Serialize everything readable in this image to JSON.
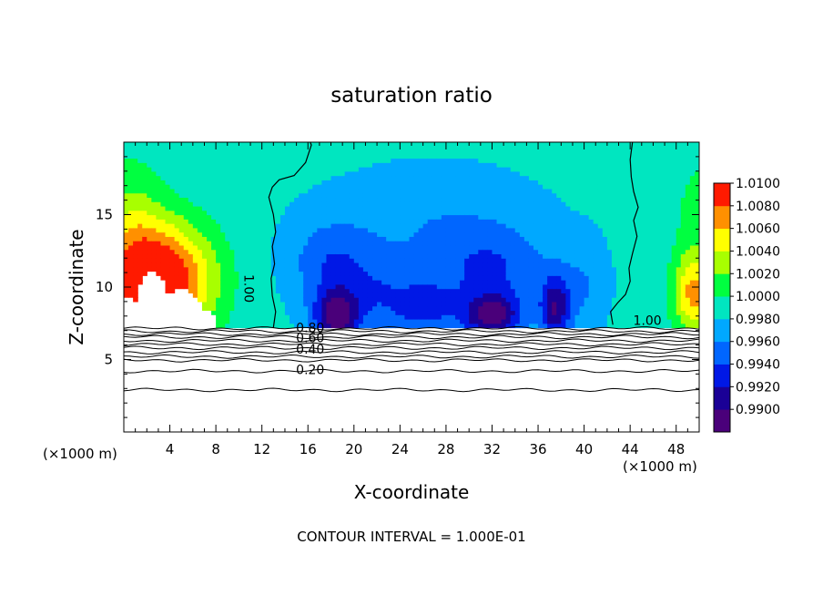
{
  "chart_data": {
    "type": "heatmap",
    "title": "saturation ratio",
    "xlabel": "X-coordinate",
    "ylabel": "Z-coordinate",
    "x_unit_left": "(×1000 m)",
    "x_unit_right": "(×1000 m)",
    "footer": "CONTOUR INTERVAL = 1.000E-01",
    "xlim": [
      0,
      50
    ],
    "ylim": [
      0,
      20
    ],
    "x_ticks": [
      {
        "value": 4,
        "label": "4"
      },
      {
        "value": 8,
        "label": "8"
      },
      {
        "value": 12,
        "label": "12"
      },
      {
        "value": 16,
        "label": "16"
      },
      {
        "value": 20,
        "label": "20"
      },
      {
        "value": 24,
        "label": "24"
      },
      {
        "value": 28,
        "label": "28"
      },
      {
        "value": 32,
        "label": "32"
      },
      {
        "value": 36,
        "label": "36"
      },
      {
        "value": 40,
        "label": "40"
      },
      {
        "value": 44,
        "label": "44"
      },
      {
        "value": 48,
        "label": "48"
      }
    ],
    "y_ticks": [
      {
        "value": 5,
        "label": "5"
      },
      {
        "value": 10,
        "label": "10"
      },
      {
        "value": 15,
        "label": "15"
      }
    ],
    "colorbar": {
      "min": 0.99,
      "max": 1.01,
      "labels": [
        "1.0100",
        "1.0080",
        "1.0060",
        "1.0040",
        "1.0020",
        "1.0000",
        "0.9980",
        "0.9960",
        "0.9940",
        "0.9920",
        "0.9900"
      ]
    },
    "contour_labels": [
      {
        "text": "1.00",
        "x": 10.5,
        "z": 9.9,
        "rotate": 90
      },
      {
        "text": "1.00",
        "x": 45.5,
        "z": 7.4,
        "rotate": 0
      },
      {
        "text": "0.80",
        "x": 16.2,
        "z": 6.9,
        "rotate": 0
      },
      {
        "text": "0.60",
        "x": 16.2,
        "z": 6.2,
        "rotate": 0
      },
      {
        "text": "0.40",
        "x": 16.2,
        "z": 5.4,
        "rotate": 0
      },
      {
        "text": "0.20",
        "x": 16.2,
        "z": 4.0,
        "rotate": 0
      }
    ],
    "field": {
      "surface_z": 7.2,
      "background_value": 0.9995,
      "features": [
        {
          "x": 3.5,
          "z": 10.5,
          "sx": 4.5,
          "sz": 4.0,
          "amp": 0.0105,
          "note": "supersaturated region left"
        },
        {
          "x": 0.5,
          "z": 12.5,
          "sx": 3.0,
          "sz": 6.0,
          "amp": 0.004
        },
        {
          "x": 49.5,
          "z": 9.5,
          "sx": 1.8,
          "sz": 2.8,
          "amp": 0.007,
          "note": "supersaturated region right"
        },
        {
          "x": 50.0,
          "z": 15.0,
          "sx": 2.5,
          "sz": 5.0,
          "amp": 0.002
        },
        {
          "x": 18.5,
          "z": 8.0,
          "sx": 2.0,
          "sz": 1.8,
          "amp": -0.0082
        },
        {
          "x": 18.0,
          "z": 11.5,
          "sx": 3.5,
          "sz": 3.0,
          "amp": -0.0035
        },
        {
          "x": 32.0,
          "z": 8.0,
          "sx": 2.5,
          "sz": 1.5,
          "amp": -0.0078
        },
        {
          "x": 32.0,
          "z": 11.0,
          "sx": 5.0,
          "sz": 3.0,
          "amp": -0.0035
        },
        {
          "x": 37.5,
          "z": 8.5,
          "sx": 1.3,
          "sz": 2.2,
          "amp": -0.007
        },
        {
          "x": 26.0,
          "z": 8.5,
          "sx": 3.0,
          "sz": 2.0,
          "amp": -0.004
        },
        {
          "x": 22.0,
          "z": 9.5,
          "sx": 3.0,
          "sz": 2.5,
          "amp": -0.0025
        },
        {
          "x": 27.0,
          "z": 14.0,
          "sx": 9.0,
          "sz": 4.0,
          "amp": -0.002
        },
        {
          "x": 40.0,
          "z": 10.0,
          "sx": 2.0,
          "sz": 3.0,
          "amp": -0.002
        }
      ],
      "blanked_regions": [
        {
          "x": 0.0,
          "z": 7.2,
          "sx": 2.0,
          "sz": 2.2
        },
        {
          "x": 2.5,
          "z": 8.5,
          "sx": 1.4,
          "sz": 2.6
        },
        {
          "x": 5.0,
          "z": 8.2,
          "sx": 1.8,
          "sz": 1.6
        },
        {
          "x": 6.5,
          "z": 7.6,
          "sx": 1.5,
          "sz": 1.0
        }
      ]
    }
  }
}
